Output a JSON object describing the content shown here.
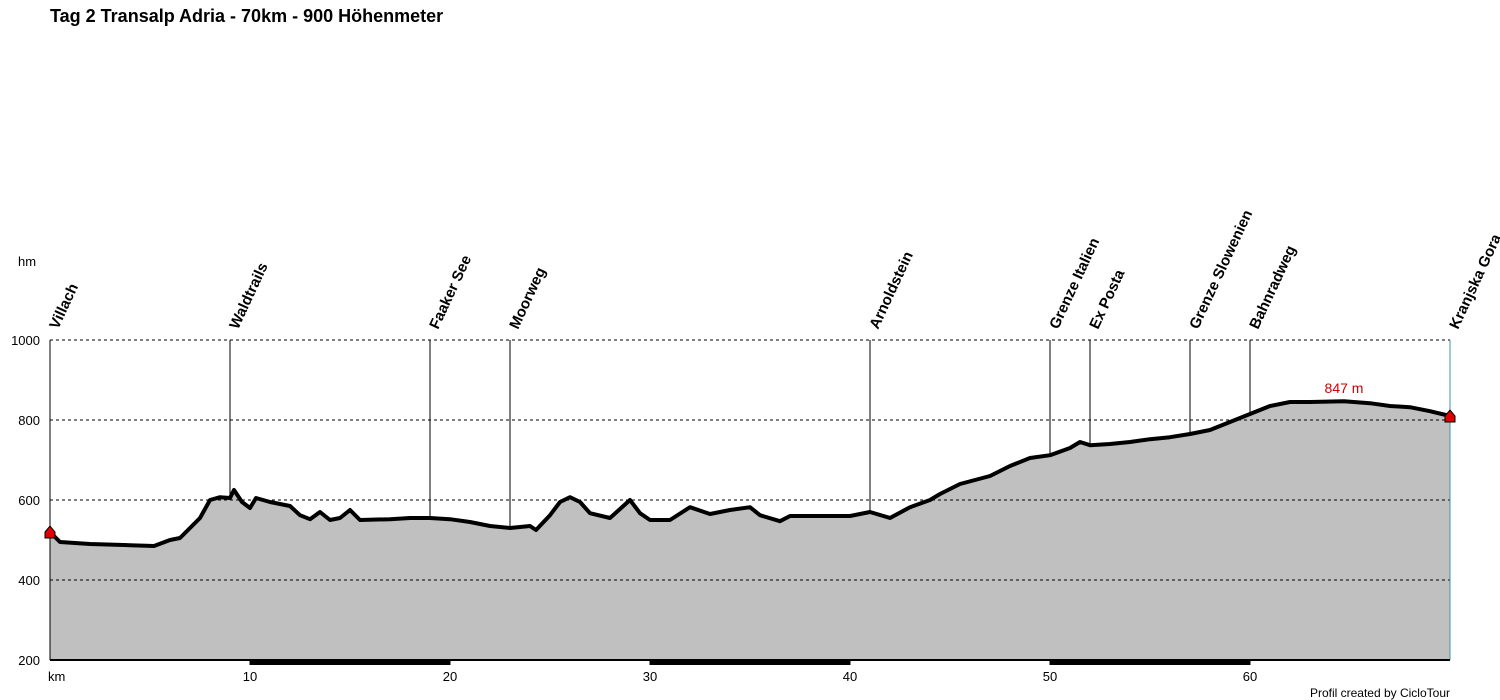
{
  "chart_data": {
    "type": "area",
    "title": "Tag 2 Transalp Adria - 70km - 900 Höhenmeter",
    "y_label": "hm",
    "x_label": "km",
    "footer": "Profil created by CicloTour",
    "color": "#c0c0c0",
    "line_color": "#000000",
    "xlim": [
      0,
      70
    ],
    "ylim": [
      200,
      1000
    ],
    "xticks": [
      10,
      20,
      30,
      40,
      50,
      60
    ],
    "yticks": [
      200,
      400,
      600,
      800,
      1000
    ],
    "grid": true,
    "x": [
      0,
      0.5,
      2,
      4,
      5.2,
      6,
      6.5,
      7.5,
      8,
      8.5,
      9,
      9.2,
      9.6,
      10,
      10.3,
      11,
      12,
      12.5,
      13,
      13.5,
      14,
      14.5,
      15,
      15.5,
      17,
      18,
      19,
      20,
      21,
      22,
      23,
      24,
      24.3,
      25,
      25.5,
      26,
      26.5,
      27,
      28,
      29,
      29.5,
      30,
      31,
      32,
      33,
      34,
      35,
      35.5,
      36.5,
      37,
      38,
      40,
      41,
      42,
      43,
      44,
      44.5,
      45.5,
      47,
      48,
      49,
      50,
      51,
      51.5,
      52,
      53,
      54,
      55,
      56,
      57,
      58,
      59,
      60,
      61,
      62,
      63,
      64.7,
      66,
      67,
      68,
      69,
      70
    ],
    "values": [
      520,
      495,
      490,
      487,
      485,
      500,
      505,
      555,
      600,
      607,
      605,
      625,
      595,
      580,
      605,
      595,
      585,
      562,
      552,
      570,
      550,
      555,
      575,
      550,
      552,
      555,
      555,
      552,
      545,
      535,
      530,
      535,
      525,
      562,
      595,
      607,
      595,
      567,
      555,
      600,
      567,
      550,
      550,
      582,
      565,
      575,
      582,
      562,
      547,
      560,
      560,
      560,
      570,
      555,
      582,
      600,
      615,
      640,
      660,
      685,
      705,
      712,
      730,
      745,
      737,
      740,
      745,
      752,
      757,
      765,
      775,
      795,
      815,
      835,
      845,
      845,
      847,
      842,
      835,
      832,
      822,
      810
    ],
    "annotations": [
      {
        "text": "847 m",
        "x": 64.7
      }
    ],
    "waypoints": [
      {
        "name": "Villach",
        "x": 0
      },
      {
        "name": "Waldtrails",
        "x": 9
      },
      {
        "name": "Faaker See",
        "x": 19
      },
      {
        "name": "Moorweg",
        "x": 23
      },
      {
        "name": "Arnoldstein",
        "x": 41
      },
      {
        "name": "Grenze Italien",
        "x": 50
      },
      {
        "name": "Ex Posta",
        "x": 52
      },
      {
        "name": "Grenze Slowenien",
        "x": 57
      },
      {
        "name": "Bahnradweg",
        "x": 60
      },
      {
        "name": "Kranjska Gora",
        "x": 70
      }
    ]
  }
}
